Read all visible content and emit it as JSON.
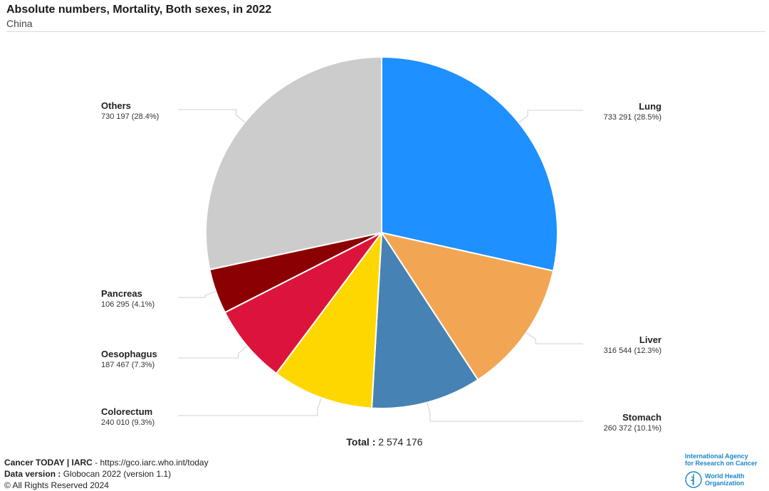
{
  "header": {
    "title": "Absolute numbers, Mortality, Both sexes, in 2022",
    "subtitle": "China"
  },
  "chart_data": {
    "type": "pie",
    "title": "Absolute numbers, Mortality, Both sexes, in 2022",
    "subtitle": "China",
    "slices": [
      {
        "name": "Lung",
        "value": 733291,
        "value_text": "733 291 (28.5%)",
        "percent": 28.5,
        "color": "#1E90FF",
        "label_side": "right"
      },
      {
        "name": "Liver",
        "value": 316544,
        "value_text": "316 544 (12.3%)",
        "percent": 12.3,
        "color": "#F2A654",
        "label_side": "right"
      },
      {
        "name": "Stomach",
        "value": 260372,
        "value_text": "260 372 (10.1%)",
        "percent": 10.1,
        "color": "#4682B4",
        "label_side": "right"
      },
      {
        "name": "Colorectum",
        "value": 240010,
        "value_text": "240 010 (9.3%)",
        "percent": 9.3,
        "color": "#FFD700",
        "label_side": "left"
      },
      {
        "name": "Oesophagus",
        "value": 187467,
        "value_text": "187 467 (7.3%)",
        "percent": 7.3,
        "color": "#DC143C",
        "label_side": "left"
      },
      {
        "name": "Pancreas",
        "value": 106295,
        "value_text": "106 295 (4.1%)",
        "percent": 4.1,
        "color": "#8B0000",
        "label_side": "left"
      },
      {
        "name": "Others",
        "value": 730197,
        "value_text": "730 197 (28.4%)",
        "percent": 28.4,
        "color": "#CCCCCC",
        "label_side": "left"
      }
    ],
    "total_label": "Total :",
    "total_value": "2 574 176"
  },
  "footer": {
    "line1_bold": "Cancer TODAY | IARC",
    "line1_rest": " - https://gco.iarc.who.int/today",
    "line2_bold": "Data version :",
    "line2_rest": " Globocan 2022 (version 1.1)",
    "line3": "© All Rights Reserved 2024"
  },
  "logo": {
    "iarc_line1": "International Agency",
    "iarc_line2": "for Research on Cancer",
    "who_line1": "World Health",
    "who_line2": "Organization"
  }
}
